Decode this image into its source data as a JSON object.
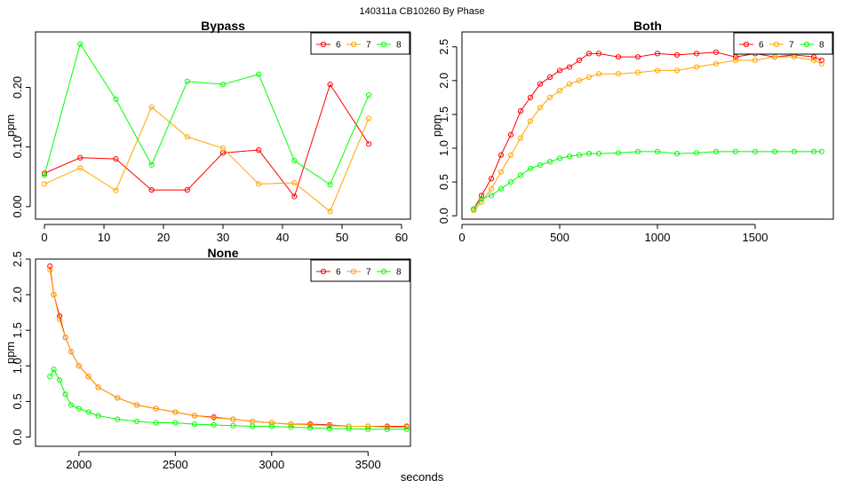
{
  "page": {
    "title": "140311a    CB10260   By Phase",
    "xlabel": "seconds"
  },
  "colors": {
    "6": "#ff0000",
    "7": "#ffa500",
    "8": "#00ff00"
  },
  "chart_data": [
    {
      "type": "line",
      "title": "Bypass",
      "xlabel": "",
      "ylabel": "ppm",
      "xlim": [
        -1.5,
        61.5
      ],
      "ylim": [
        -0.021,
        0.293
      ],
      "xticks": [
        0,
        10,
        20,
        30,
        40,
        50,
        60
      ],
      "yticks": [
        0.0,
        0.1,
        0.2
      ],
      "ytick_labels": [
        "0.00",
        "0.10",
        "0.20"
      ],
      "legend": "top-right",
      "series": [
        {
          "name": "6",
          "x": [
            0,
            6,
            12,
            18,
            24,
            30,
            36,
            42,
            48,
            54.5
          ],
          "y": [
            0.056,
            0.082,
            0.08,
            0.028,
            0.028,
            0.09,
            0.095,
            0.017,
            0.205,
            0.105
          ]
        },
        {
          "name": "7",
          "x": [
            0,
            6,
            12,
            18,
            24,
            30,
            36,
            42,
            48,
            54.5
          ],
          "y": [
            0.038,
            0.065,
            0.027,
            0.167,
            0.117,
            0.098,
            0.038,
            0.04,
            -0.008,
            0.148
          ]
        },
        {
          "name": "8",
          "x": [
            0,
            6,
            12,
            18,
            24,
            30,
            36,
            42,
            48,
            54.5
          ],
          "y": [
            0.053,
            0.273,
            0.18,
            0.07,
            0.21,
            0.205,
            0.222,
            0.077,
            0.037,
            0.187
          ]
        }
      ]
    },
    {
      "type": "scatter",
      "title": "Both",
      "xlabel": "",
      "ylabel": "ppm",
      "xlim": [
        0,
        1900
      ],
      "ylim": [
        -0.05,
        2.72
      ],
      "xticks": [
        0,
        500,
        1000,
        1500
      ],
      "yticks": [
        0.0,
        0.5,
        1.0,
        1.5,
        2.0,
        2.5
      ],
      "ytick_labels": [
        "0.0",
        "0.5",
        "1.0",
        "1.5",
        "2.0",
        "2.5"
      ],
      "legend": "top-right",
      "series": [
        {
          "name": "6",
          "x": [
            60,
            100,
            150,
            200,
            250,
            300,
            350,
            400,
            450,
            500,
            550,
            600,
            650,
            700,
            800,
            900,
            1000,
            1100,
            1200,
            1300,
            1400,
            1500,
            1600,
            1700,
            1800,
            1840
          ],
          "y": [
            0.1,
            0.3,
            0.55,
            0.9,
            1.2,
            1.55,
            1.75,
            1.95,
            2.05,
            2.15,
            2.2,
            2.3,
            2.4,
            2.4,
            2.35,
            2.35,
            2.4,
            2.38,
            2.4,
            2.42,
            2.35,
            2.4,
            2.35,
            2.38,
            2.35,
            2.3
          ]
        },
        {
          "name": "7",
          "x": [
            60,
            100,
            150,
            200,
            250,
            300,
            350,
            400,
            450,
            500,
            550,
            600,
            650,
            700,
            800,
            900,
            1000,
            1100,
            1200,
            1300,
            1400,
            1500,
            1600,
            1700,
            1800,
            1840
          ],
          "y": [
            0.08,
            0.2,
            0.4,
            0.65,
            0.9,
            1.15,
            1.4,
            1.6,
            1.75,
            1.85,
            1.95,
            2.0,
            2.05,
            2.1,
            2.1,
            2.12,
            2.15,
            2.15,
            2.2,
            2.25,
            2.3,
            2.3,
            2.35,
            2.35,
            2.3,
            2.25
          ]
        },
        {
          "name": "8",
          "x": [
            60,
            100,
            150,
            200,
            250,
            300,
            350,
            400,
            450,
            500,
            550,
            600,
            650,
            700,
            800,
            900,
            1000,
            1100,
            1200,
            1300,
            1400,
            1500,
            1600,
            1700,
            1800,
            1840
          ],
          "y": [
            0.1,
            0.25,
            0.3,
            0.4,
            0.5,
            0.6,
            0.7,
            0.75,
            0.8,
            0.85,
            0.88,
            0.9,
            0.92,
            0.92,
            0.93,
            0.95,
            0.95,
            0.92,
            0.93,
            0.95,
            0.95,
            0.95,
            0.95,
            0.95,
            0.95,
            0.95
          ]
        }
      ]
    },
    {
      "type": "scatter",
      "title": "None",
      "xlabel": "seconds",
      "ylabel": "ppm",
      "xlim": [
        1775,
        3720
      ],
      "ylim": [
        -0.13,
        2.5
      ],
      "xticks": [
        2000,
        2500,
        3000,
        3500
      ],
      "yticks": [
        0.0,
        0.5,
        1.0,
        1.5,
        2.0,
        2.5
      ],
      "ytick_labels": [
        "0.0",
        "0.5",
        "1.0",
        "1.5",
        "2.0",
        "2.5"
      ],
      "legend": "top-right",
      "series": [
        {
          "name": "6",
          "x": [
            1850,
            1870,
            1900,
            1930,
            1960,
            2000,
            2050,
            2100,
            2200,
            2300,
            2400,
            2500,
            2600,
            2700,
            2800,
            2900,
            3000,
            3100,
            3200,
            3300,
            3400,
            3500,
            3600,
            3700
          ],
          "y": [
            2.4,
            2.0,
            1.7,
            1.4,
            1.2,
            1.0,
            0.85,
            0.7,
            0.55,
            0.45,
            0.4,
            0.35,
            0.3,
            0.28,
            0.25,
            0.22,
            0.2,
            0.18,
            0.18,
            0.17,
            0.15,
            0.15,
            0.15,
            0.15
          ]
        },
        {
          "name": "7",
          "x": [
            1850,
            1870,
            1900,
            1930,
            1960,
            2000,
            2050,
            2100,
            2200,
            2300,
            2400,
            2500,
            2600,
            2700,
            2800,
            2900,
            3000,
            3100,
            3200,
            3300,
            3400,
            3500,
            3600,
            3700
          ],
          "y": [
            2.35,
            2.0,
            1.65,
            1.4,
            1.2,
            1.0,
            0.85,
            0.7,
            0.55,
            0.45,
            0.4,
            0.35,
            0.3,
            0.27,
            0.25,
            0.22,
            0.2,
            0.18,
            0.17,
            0.16,
            0.15,
            0.15,
            0.14,
            0.14
          ]
        },
        {
          "name": "8",
          "x": [
            1850,
            1870,
            1900,
            1930,
            1960,
            2000,
            2050,
            2100,
            2200,
            2300,
            2400,
            2500,
            2600,
            2700,
            2800,
            2900,
            3000,
            3100,
            3200,
            3300,
            3400,
            3500,
            3600,
            3700
          ],
          "y": [
            0.85,
            0.95,
            0.8,
            0.6,
            0.45,
            0.4,
            0.35,
            0.3,
            0.25,
            0.22,
            0.2,
            0.2,
            0.18,
            0.17,
            0.16,
            0.15,
            0.15,
            0.14,
            0.13,
            0.12,
            0.12,
            0.11,
            0.11,
            0.11
          ]
        }
      ]
    }
  ]
}
